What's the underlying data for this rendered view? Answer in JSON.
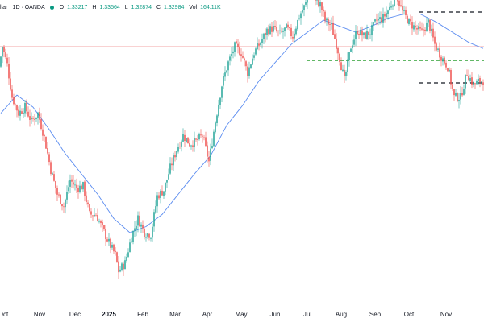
{
  "header": {
    "symbol_fragment": "llar · 1D · OANDA",
    "status_color": "#089981",
    "open_key": "O",
    "open": "1.33217",
    "high_key": "H",
    "high": "1.33564",
    "low_key": "L",
    "low": "1.32874",
    "close_key": "C",
    "close": "1.32984",
    "vol_key": "Vol",
    "vol": "164.11K"
  },
  "colors": {
    "up": "#26a69a",
    "down": "#ef5350",
    "ma_line": "#5b8cf0",
    "horizontal_red": "#f7c4c4",
    "support_green": "#4caf50",
    "dashed_black": "#131722"
  },
  "chart_data": {
    "type": "candlestick",
    "title": "",
    "xlabel": "",
    "ylabel": "",
    "grid": false,
    "ylim": [
      1.21,
      1.35
    ],
    "x_ticks": [
      {
        "label": "Oct",
        "index": 1.5,
        "bold": false
      },
      {
        "label": "Nov",
        "index": 24,
        "bold": false
      },
      {
        "label": "Dec",
        "index": 46,
        "bold": false
      },
      {
        "label": "2025",
        "index": 67,
        "bold": true
      },
      {
        "label": "Feb",
        "index": 88,
        "bold": false
      },
      {
        "label": "Mar",
        "index": 108,
        "bold": false
      },
      {
        "label": "Apr",
        "index": 128,
        "bold": false
      },
      {
        "label": "May",
        "index": 149,
        "bold": false
      },
      {
        "label": "Jun",
        "index": 170,
        "bold": false
      },
      {
        "label": "Jul",
        "index": 190,
        "bold": false
      },
      {
        "label": "Aug",
        "index": 211,
        "bold": false
      },
      {
        "label": "Sep",
        "index": 232,
        "bold": false
      },
      {
        "label": "Oct",
        "index": 253,
        "bold": false
      },
      {
        "label": "Nov",
        "index": 276,
        "bold": false
      }
    ],
    "key_points": [
      [
        0,
        1.325
      ],
      [
        2,
        1.335
      ],
      [
        5,
        1.326
      ],
      [
        8,
        1.31
      ],
      [
        12,
        1.302
      ],
      [
        16,
        1.305
      ],
      [
        20,
        1.298
      ],
      [
        24,
        1.302
      ],
      [
        28,
        1.29
      ],
      [
        32,
        1.274
      ],
      [
        36,
        1.262
      ],
      [
        40,
        1.256
      ],
      [
        44,
        1.269
      ],
      [
        48,
        1.265
      ],
      [
        52,
        1.266
      ],
      [
        56,
        1.252
      ],
      [
        60,
        1.252
      ],
      [
        64,
        1.245
      ],
      [
        68,
        1.238
      ],
      [
        72,
        1.232
      ],
      [
        74,
        1.224
      ],
      [
        78,
        1.228
      ],
      [
        82,
        1.241
      ],
      [
        86,
        1.25
      ],
      [
        90,
        1.243
      ],
      [
        94,
        1.242
      ],
      [
        98,
        1.261
      ],
      [
        102,
        1.264
      ],
      [
        106,
        1.275
      ],
      [
        110,
        1.284
      ],
      [
        114,
        1.291
      ],
      [
        118,
        1.287
      ],
      [
        122,
        1.288
      ],
      [
        126,
        1.291
      ],
      [
        130,
        1.278
      ],
      [
        134,
        1.298
      ],
      [
        138,
        1.316
      ],
      [
        142,
        1.327
      ],
      [
        146,
        1.335
      ],
      [
        150,
        1.332
      ],
      [
        154,
        1.322
      ],
      [
        158,
        1.332
      ],
      [
        162,
        1.337
      ],
      [
        166,
        1.343
      ],
      [
        170,
        1.344
      ],
      [
        174,
        1.341
      ],
      [
        178,
        1.344
      ],
      [
        182,
        1.34
      ],
      [
        186,
        1.35
      ],
      [
        190,
        1.356
      ],
      [
        193,
        1.37
      ],
      [
        196,
        1.357
      ],
      [
        199,
        1.356
      ],
      [
        202,
        1.348
      ],
      [
        206,
        1.345
      ],
      [
        210,
        1.333
      ],
      [
        214,
        1.318
      ],
      [
        218,
        1.335
      ],
      [
        222,
        1.343
      ],
      [
        226,
        1.34
      ],
      [
        230,
        1.342
      ],
      [
        234,
        1.348
      ],
      [
        238,
        1.349
      ],
      [
        242,
        1.354
      ],
      [
        246,
        1.361
      ],
      [
        250,
        1.352
      ],
      [
        254,
        1.347
      ],
      [
        258,
        1.344
      ],
      [
        262,
        1.342
      ],
      [
        266,
        1.347
      ],
      [
        270,
        1.336
      ],
      [
        274,
        1.33
      ],
      [
        278,
        1.325
      ],
      [
        282,
        1.31
      ],
      [
        286,
        1.31
      ],
      [
        290,
        1.322
      ],
      [
        294,
        1.316
      ],
      [
        298,
        1.318
      ]
    ],
    "ma_points": [
      [
        0,
        1.302
      ],
      [
        10,
        1.311
      ],
      [
        20,
        1.305
      ],
      [
        30,
        1.294
      ],
      [
        40,
        1.282
      ],
      [
        50,
        1.272
      ],
      [
        60,
        1.262
      ],
      [
        70,
        1.25
      ],
      [
        80,
        1.243
      ],
      [
        90,
        1.246
      ],
      [
        100,
        1.252
      ],
      [
        110,
        1.262
      ],
      [
        120,
        1.272
      ],
      [
        130,
        1.281
      ],
      [
        140,
        1.296
      ],
      [
        150,
        1.306
      ],
      [
        160,
        1.318
      ],
      [
        170,
        1.327
      ],
      [
        180,
        1.336
      ],
      [
        190,
        1.342
      ],
      [
        200,
        1.348
      ],
      [
        210,
        1.345
      ],
      [
        220,
        1.342
      ],
      [
        230,
        1.345
      ],
      [
        240,
        1.349
      ],
      [
        250,
        1.351
      ],
      [
        260,
        1.351
      ],
      [
        270,
        1.347
      ],
      [
        280,
        1.342
      ],
      [
        290,
        1.337
      ],
      [
        299,
        1.334
      ]
    ],
    "levels": [
      {
        "name": "red-horizontal",
        "value": 1.335,
        "from_index": 0,
        "to_index": 299,
        "style": "solid"
      },
      {
        "name": "green-support",
        "value": 1.328,
        "from_index": 190,
        "to_index": 299,
        "style": "dashed"
      },
      {
        "name": "resistance-dashed",
        "value": 1.352,
        "from_index": 260,
        "to_index": 299,
        "style": "dashed"
      },
      {
        "name": "support-dashed",
        "value": 1.317,
        "from_index": 260,
        "to_index": 299,
        "style": "dashed"
      }
    ],
    "candle_count": 300
  }
}
